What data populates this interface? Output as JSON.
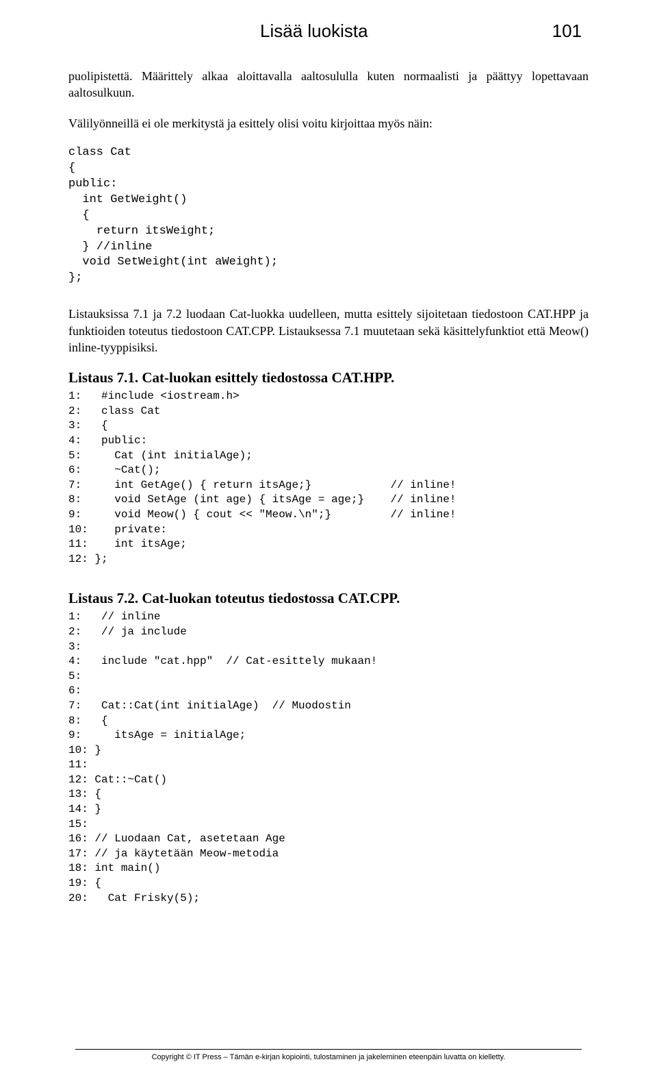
{
  "header": {
    "title": "Lisää luokista",
    "page": "101"
  },
  "para1": "puolipistettä. Määrittely alkaa aloittavalla aaltosululla kuten normaalisti ja päättyy lopettavaan aaltosulkuun.",
  "para2": "Välilyönneillä ei ole merkitystä ja esittely olisi voitu kirjoittaa myös näin:",
  "code1": "class Cat\n{\npublic:\n  int GetWeight()\n  {\n    return itsWeight;\n  } //inline\n  void SetWeight(int aWeight);\n};",
  "para3": "Listauksissa 7.1 ja 7.2 luodaan Cat-luokka uudelleen, mutta esittely sijoitetaan tiedostoon CAT.HPP ja funktioiden toteutus tiedostoon CAT.CPP. Listauksessa 7.1 muutetaan sekä käsittelyfunktiot että Meow() inline-tyyppisiksi.",
  "listing1": {
    "title": "Listaus 7.1. Cat-luokan esittely tiedostossa CAT.HPP.",
    "code": "1:   #include <iostream.h>\n2:   class Cat\n3:   {\n4:   public:\n5:     Cat (int initialAge);\n6:     ~Cat();\n7:     int GetAge() { return itsAge;}            // inline!\n8:     void SetAge (int age) { itsAge = age;}    // inline!\n9:     void Meow() { cout << \"Meow.\\n\";}         // inline!\n10:    private:\n11:    int itsAge;\n12: };"
  },
  "listing2": {
    "title": "Listaus 7.2. Cat-luokan toteutus tiedostossa CAT.CPP.",
    "code": "1:   // inline\n2:   // ja include\n3:\n4:   include \"cat.hpp\"  // Cat-esittely mukaan!\n5:\n6:\n7:   Cat::Cat(int initialAge)  // Muodostin\n8:   {\n9:     itsAge = initialAge;\n10: }\n11:\n12: Cat::~Cat()\n13: {\n14: }\n15:\n16: // Luodaan Cat, asetetaan Age\n17: // ja käytetään Meow-metodia\n18: int main()\n19: {\n20:   Cat Frisky(5);"
  },
  "footer": "Copyright © IT Press – Tämän e-kirjan kopiointi, tulostaminen ja jakeleminen eteenpäin luvatta on kielletty."
}
